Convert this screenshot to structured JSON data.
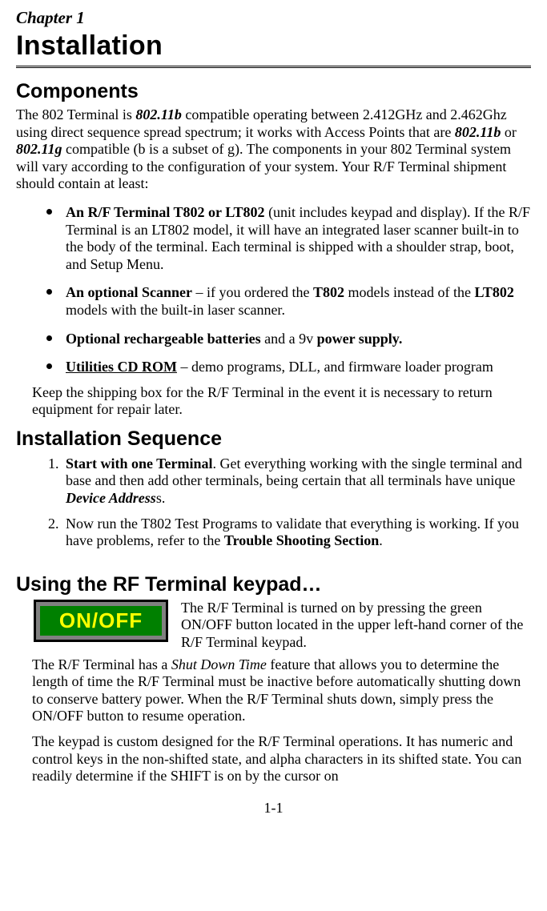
{
  "chapter_label": "Chapter 1",
  "chapter_title": "Installation",
  "components": {
    "heading": "Components",
    "intro_before_80211b": "The 802 Terminal is ",
    "ieee_b": "802.11b",
    "intro_mid": " compatible operating between 2.412GHz and 2.462Ghz using direct sequence spread spectrum; it works with Access Points that are ",
    "intro_mid2": " or ",
    "ieee_g": "802.11g",
    "intro_after": " compatible (b is a subset of g). The components in your 802 Terminal system will vary according to the configuration of your system.  Your R/F Terminal shipment should contain at least:",
    "b1_lead": "An R/F Terminal T802 or LT802",
    "b1_rest": " (unit includes keypad and display). If the R/F Terminal is an LT802 model, it will have an integrated laser scanner built-in to the body of the terminal. Each terminal is shipped with a shoulder strap, boot, and Setup Menu.",
    "b2_lead": "An optional Scanner",
    "b2_mid1": " – if you ordered the ",
    "b2_t802": "T802",
    "b2_mid2": " models instead of the ",
    "b2_lt802": "LT802",
    "b2_rest": " models with the built-in laser scanner.",
    "b3_lead": "Optional rechargeable batteries",
    "b3_mid": " and a 9v ",
    "b3_ps": "power supply.",
    "b4_lead": "Utilities CD ROM",
    "b4_rest": " – demo programs, DLL, and firmware loader program",
    "keep_box": "Keep the shipping box for the R/F Terminal in the event it is necessary to return equipment for repair later."
  },
  "seq": {
    "heading": "Installation Sequence",
    "n1_lead": "Start with one Terminal",
    "n1_mid": ". Get everything working with the single terminal and base and then add other terminals, being certain that all terminals have unique ",
    "n1_da": "Device Address",
    "n1_tail": "s.",
    "n2_pre": "Now run the T802 Test Programs to validate that everything is working. If you have problems, refer to the ",
    "n2_ts": "Trouble Shooting Section",
    "n2_dot": "."
  },
  "using": {
    "heading": "Using the RF Terminal keypad…",
    "btn_label": "ON/OFF",
    "p1": "The R/F Terminal is turned on by pressing the green ON/OFF button located in the upper left-hand corner of the R/F Terminal keypad.",
    "p2_pre": "The R/F Terminal has a ",
    "p2_sdt": "Shut Down Time",
    "p2_post": " feature that allows you to determine the length of time the R/F Terminal must be inactive before automatically shutting down to conserve battery power.  When the R/F Terminal shuts down, simply press the ON/OFF button to resume operation.",
    "p3": "The keypad is custom designed for the R/F Terminal operations. It has numeric and control keys in the non-shifted state, and alpha characters in its shifted state. You can readily determine if the SHIFT is on by the cursor on"
  },
  "footer": "1-1"
}
